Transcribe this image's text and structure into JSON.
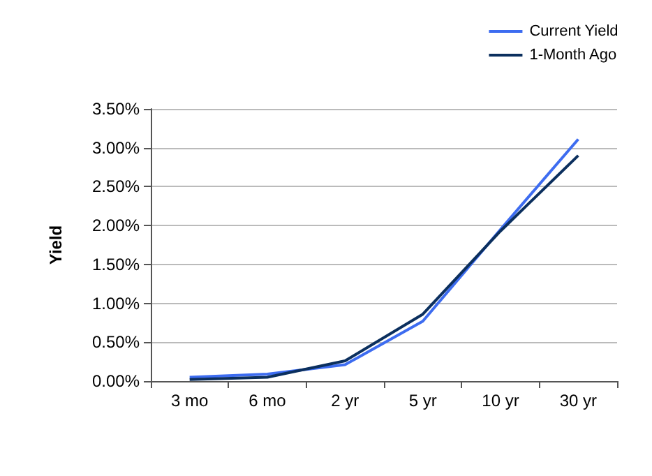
{
  "chart_data": {
    "type": "line",
    "ylabel": "Yield",
    "categories": [
      "3 mo",
      "6 mo",
      "2 yr",
      "5 yr",
      "10 yr",
      "30 yr"
    ],
    "series": [
      {
        "name": "Current Yield",
        "color": "#3d6cf0",
        "values": [
          0.05,
          0.09,
          0.21,
          0.77,
          1.95,
          3.11
        ]
      },
      {
        "name": "1-Month Ago",
        "color": "#0b2f5e",
        "values": [
          0.02,
          0.05,
          0.26,
          0.86,
          1.93,
          2.9
        ]
      }
    ],
    "ylim": [
      0,
      3.5
    ],
    "yticks": [
      {
        "value": 0,
        "label": "0.00%"
      },
      {
        "value": 0.5,
        "label": "0.50%"
      },
      {
        "value": 1,
        "label": "1.00%"
      },
      {
        "value": 1.5,
        "label": "1.50%"
      },
      {
        "value": 2,
        "label": "2.00%"
      },
      {
        "value": 2.5,
        "label": "2.50%"
      },
      {
        "value": 3,
        "label": "3.00%"
      },
      {
        "value": 3.5,
        "label": "3.50%"
      }
    ],
    "grid": "y",
    "legend": "top right",
    "marker": "none",
    "line_style": "solid"
  }
}
